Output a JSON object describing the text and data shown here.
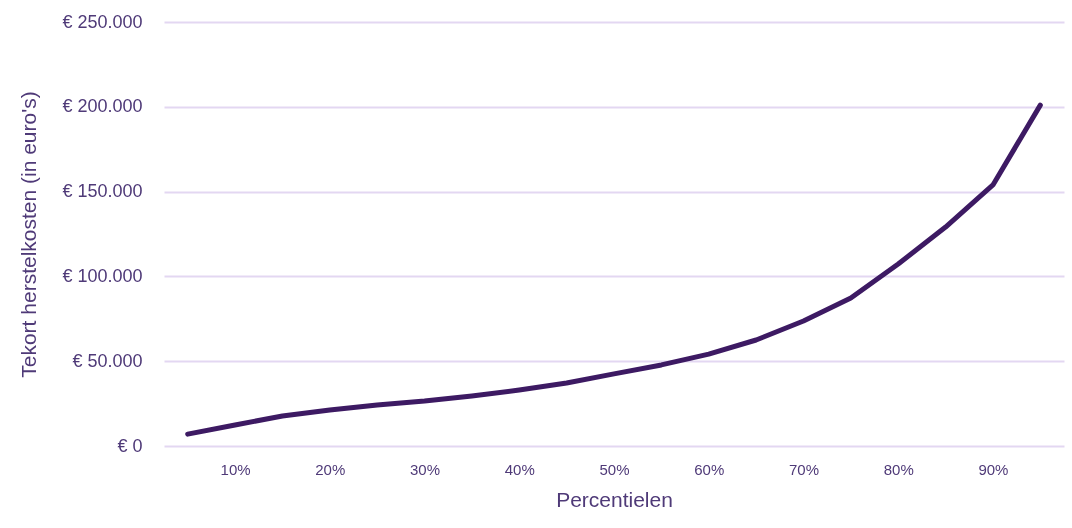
{
  "chart_data": {
    "type": "line",
    "xlabel": "Percentielen",
    "ylabel": "Tekort herstelkosten (in euro's)",
    "categories": [
      null,
      "10%",
      null,
      "20%",
      null,
      "30%",
      null,
      "40%",
      null,
      "50%",
      null,
      "60%",
      null,
      "70%",
      null,
      "80%",
      null,
      "90%",
      null
    ],
    "series": [
      {
        "color": "#3d1a63",
        "values": [
          7000,
          12400,
          17700,
          21200,
          24200,
          26500,
          29500,
          33000,
          37100,
          42500,
          47800,
          54200,
          62500,
          73700,
          87300,
          107300,
          129100,
          153900,
          201000
        ]
      }
    ],
    "ylim": [
      0,
      250000
    ],
    "yticks": [
      {
        "value": 0,
        "label": "€ 0"
      },
      {
        "value": 50000,
        "label": "€ 50.000"
      },
      {
        "value": 100000,
        "label": "€ 100.000"
      },
      {
        "value": 150000,
        "label": "€ 150.000"
      },
      {
        "value": 200000,
        "label": "€ 200.000"
      },
      {
        "value": 250000,
        "label": "€ 250.000"
      }
    ],
    "grid": "y",
    "marker": "none",
    "line_style": "solid"
  }
}
